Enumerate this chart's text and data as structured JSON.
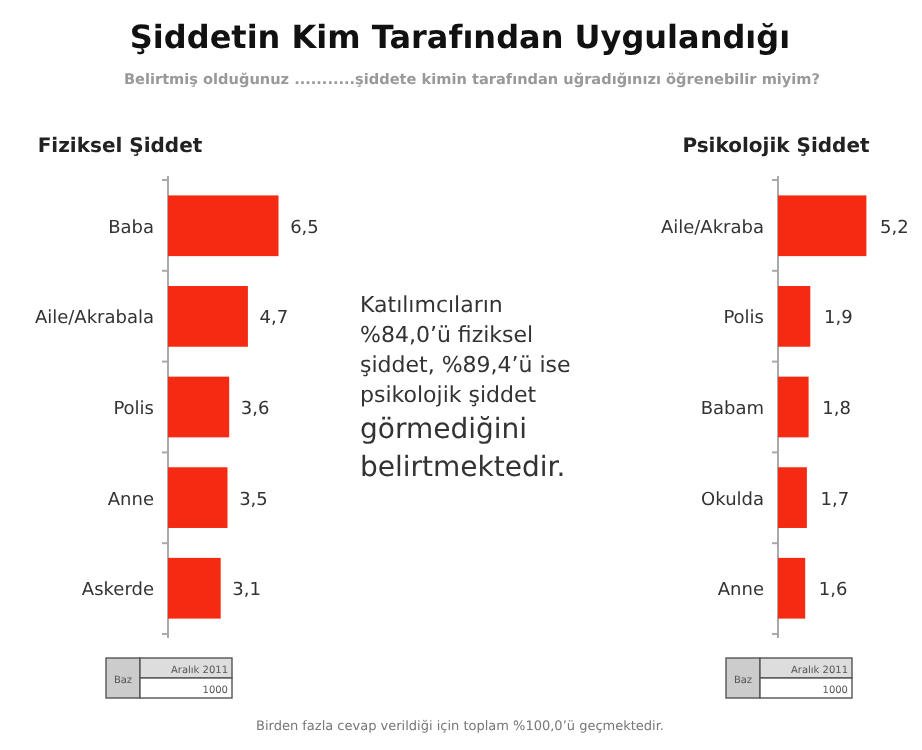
{
  "chart_data": [
    {
      "type": "other",
      "title": "Şiddetin Kim Tarafından Uygulandığı",
      "subtitle": "Belirtmiş olduğunuz ...........şiddete kimin tarafından uğradığınızı öğrenebilir miyim?"
    },
    {
      "type": "bar",
      "orientation": "horizontal",
      "title": "Fiziksel Şiddet",
      "categories": [
        "Baba",
        "Aile/Akrabala",
        "Polis",
        "Anne",
        "Askerde"
      ],
      "values": [
        6.5,
        4.7,
        3.6,
        3.5,
        3.1
      ],
      "color": "#f42b12",
      "data_labels": true,
      "value_labels": [
        "6,5",
        "4,7",
        "3,6",
        "3,5",
        "3,1"
      ],
      "annotations": [
        "Baz",
        "Aralık 2011",
        "1000"
      ]
    },
    {
      "type": "other",
      "annotations": [
        "Katılımcıların",
        "%84,0’ü fiziksel",
        "şiddet, %89,4’ü ise",
        "psikolojik şiddet",
        "görmediğini",
        "belirtmektedir.",
        "Birden fazla cevap verildiği için toplam %100,0’ü geçmektedir."
      ]
    },
    {
      "type": "bar",
      "orientation": "horizontal",
      "title": "Psikolojik Şiddet",
      "categories": [
        "Aile/Akraba",
        "Polis",
        "Babam",
        "Okulda",
        "Anne"
      ],
      "values": [
        5.2,
        1.9,
        1.8,
        1.7,
        1.6
      ],
      "color": "#f42b12",
      "data_labels": true,
      "value_labels": [
        "5,2",
        "1,9",
        "1,8",
        "1,7",
        "1,6"
      ],
      "annotations": [
        "Baz",
        "Aralık 2011",
        "1000"
      ]
    }
  ]
}
